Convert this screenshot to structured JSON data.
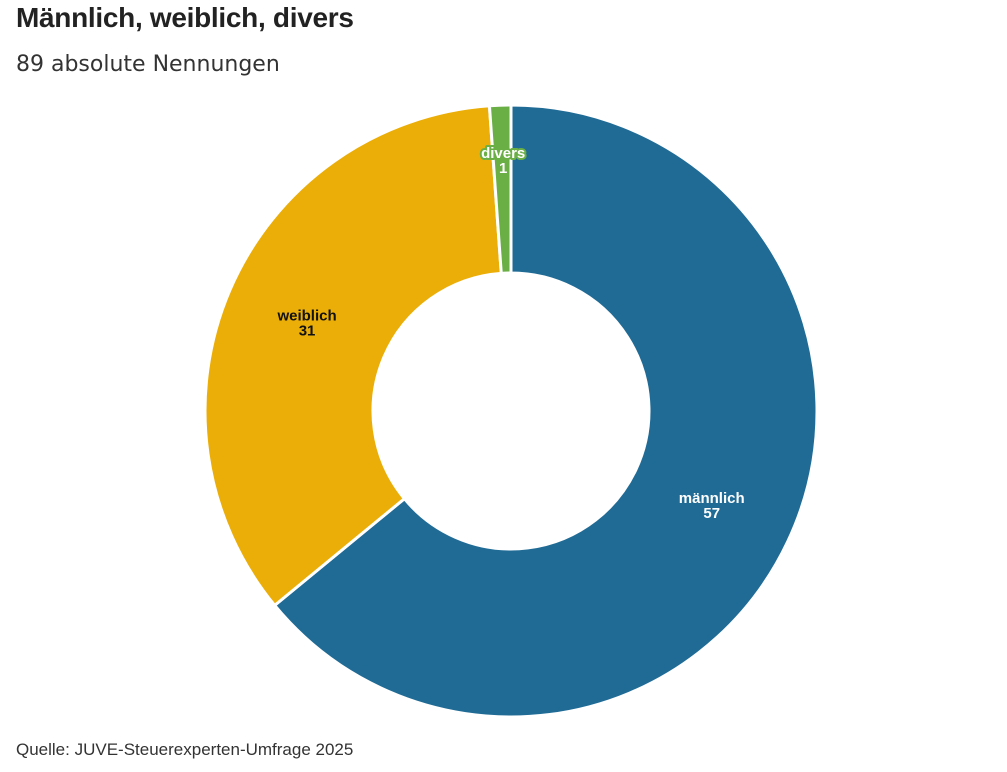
{
  "header": {
    "title": "Männlich, weiblich, divers",
    "subtitle": "89 absolute Nennungen"
  },
  "footer": {
    "source": "Quelle: JUVE-Steuerexperten-Umfrage 2025"
  },
  "chart_data": {
    "type": "pie",
    "variant": "donut",
    "title": "Männlich, weiblich, divers",
    "subtitle": "89 absolute Nennungen",
    "total": 89,
    "legend": "none",
    "categories": [
      "männlich",
      "weiblich",
      "divers"
    ],
    "values": [
      57,
      31,
      1
    ],
    "colors": [
      "#1f6b96",
      "#ebae08",
      "#6aaf45"
    ],
    "label_colors": [
      "#ffffff",
      "#111111",
      "#ffffff"
    ]
  }
}
